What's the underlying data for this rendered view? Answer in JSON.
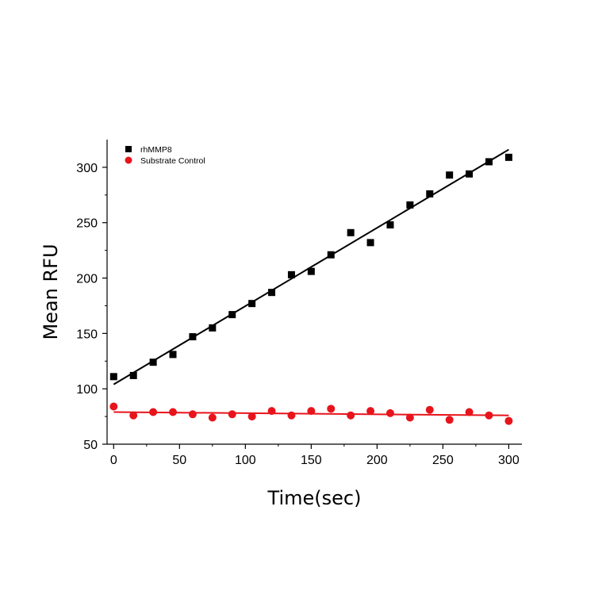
{
  "chart_data": {
    "type": "scatter",
    "xlabel": "Time(sec)",
    "ylabel": "Mean RFU",
    "xlim": [
      -5,
      310
    ],
    "ylim": [
      50,
      325
    ],
    "xticks": [
      0,
      50,
      100,
      150,
      200,
      250,
      300
    ],
    "yticks": [
      50,
      100,
      150,
      200,
      250,
      300
    ],
    "grid": false,
    "legend_position": "top-left",
    "series": [
      {
        "name": "rhMMP8",
        "marker": "square",
        "color": "#000000",
        "x": [
          0,
          15,
          30,
          45,
          60,
          75,
          90,
          105,
          120,
          135,
          150,
          165,
          180,
          195,
          210,
          225,
          240,
          255,
          270,
          285,
          300
        ],
        "y": [
          111,
          112,
          124,
          131,
          147,
          155,
          167,
          177,
          187,
          203,
          206,
          221,
          241,
          232,
          248,
          266,
          276,
          293,
          294,
          305,
          309
        ],
        "fit": {
          "x": [
            0,
            300
          ],
          "y": [
            104,
            316
          ]
        }
      },
      {
        "name": "Substrate Control",
        "marker": "circle",
        "color": "#e8141c",
        "x": [
          0,
          15,
          30,
          45,
          60,
          75,
          90,
          105,
          120,
          135,
          150,
          165,
          180,
          195,
          210,
          225,
          240,
          255,
          270,
          285,
          300
        ],
        "y": [
          84,
          76,
          79,
          79,
          77,
          74,
          77,
          75,
          80,
          76,
          80,
          82,
          76,
          80,
          78,
          74,
          81,
          72,
          79,
          76,
          71
        ],
        "fit": {
          "x": [
            0,
            300
          ],
          "y": [
            79,
            76
          ]
        }
      }
    ]
  }
}
